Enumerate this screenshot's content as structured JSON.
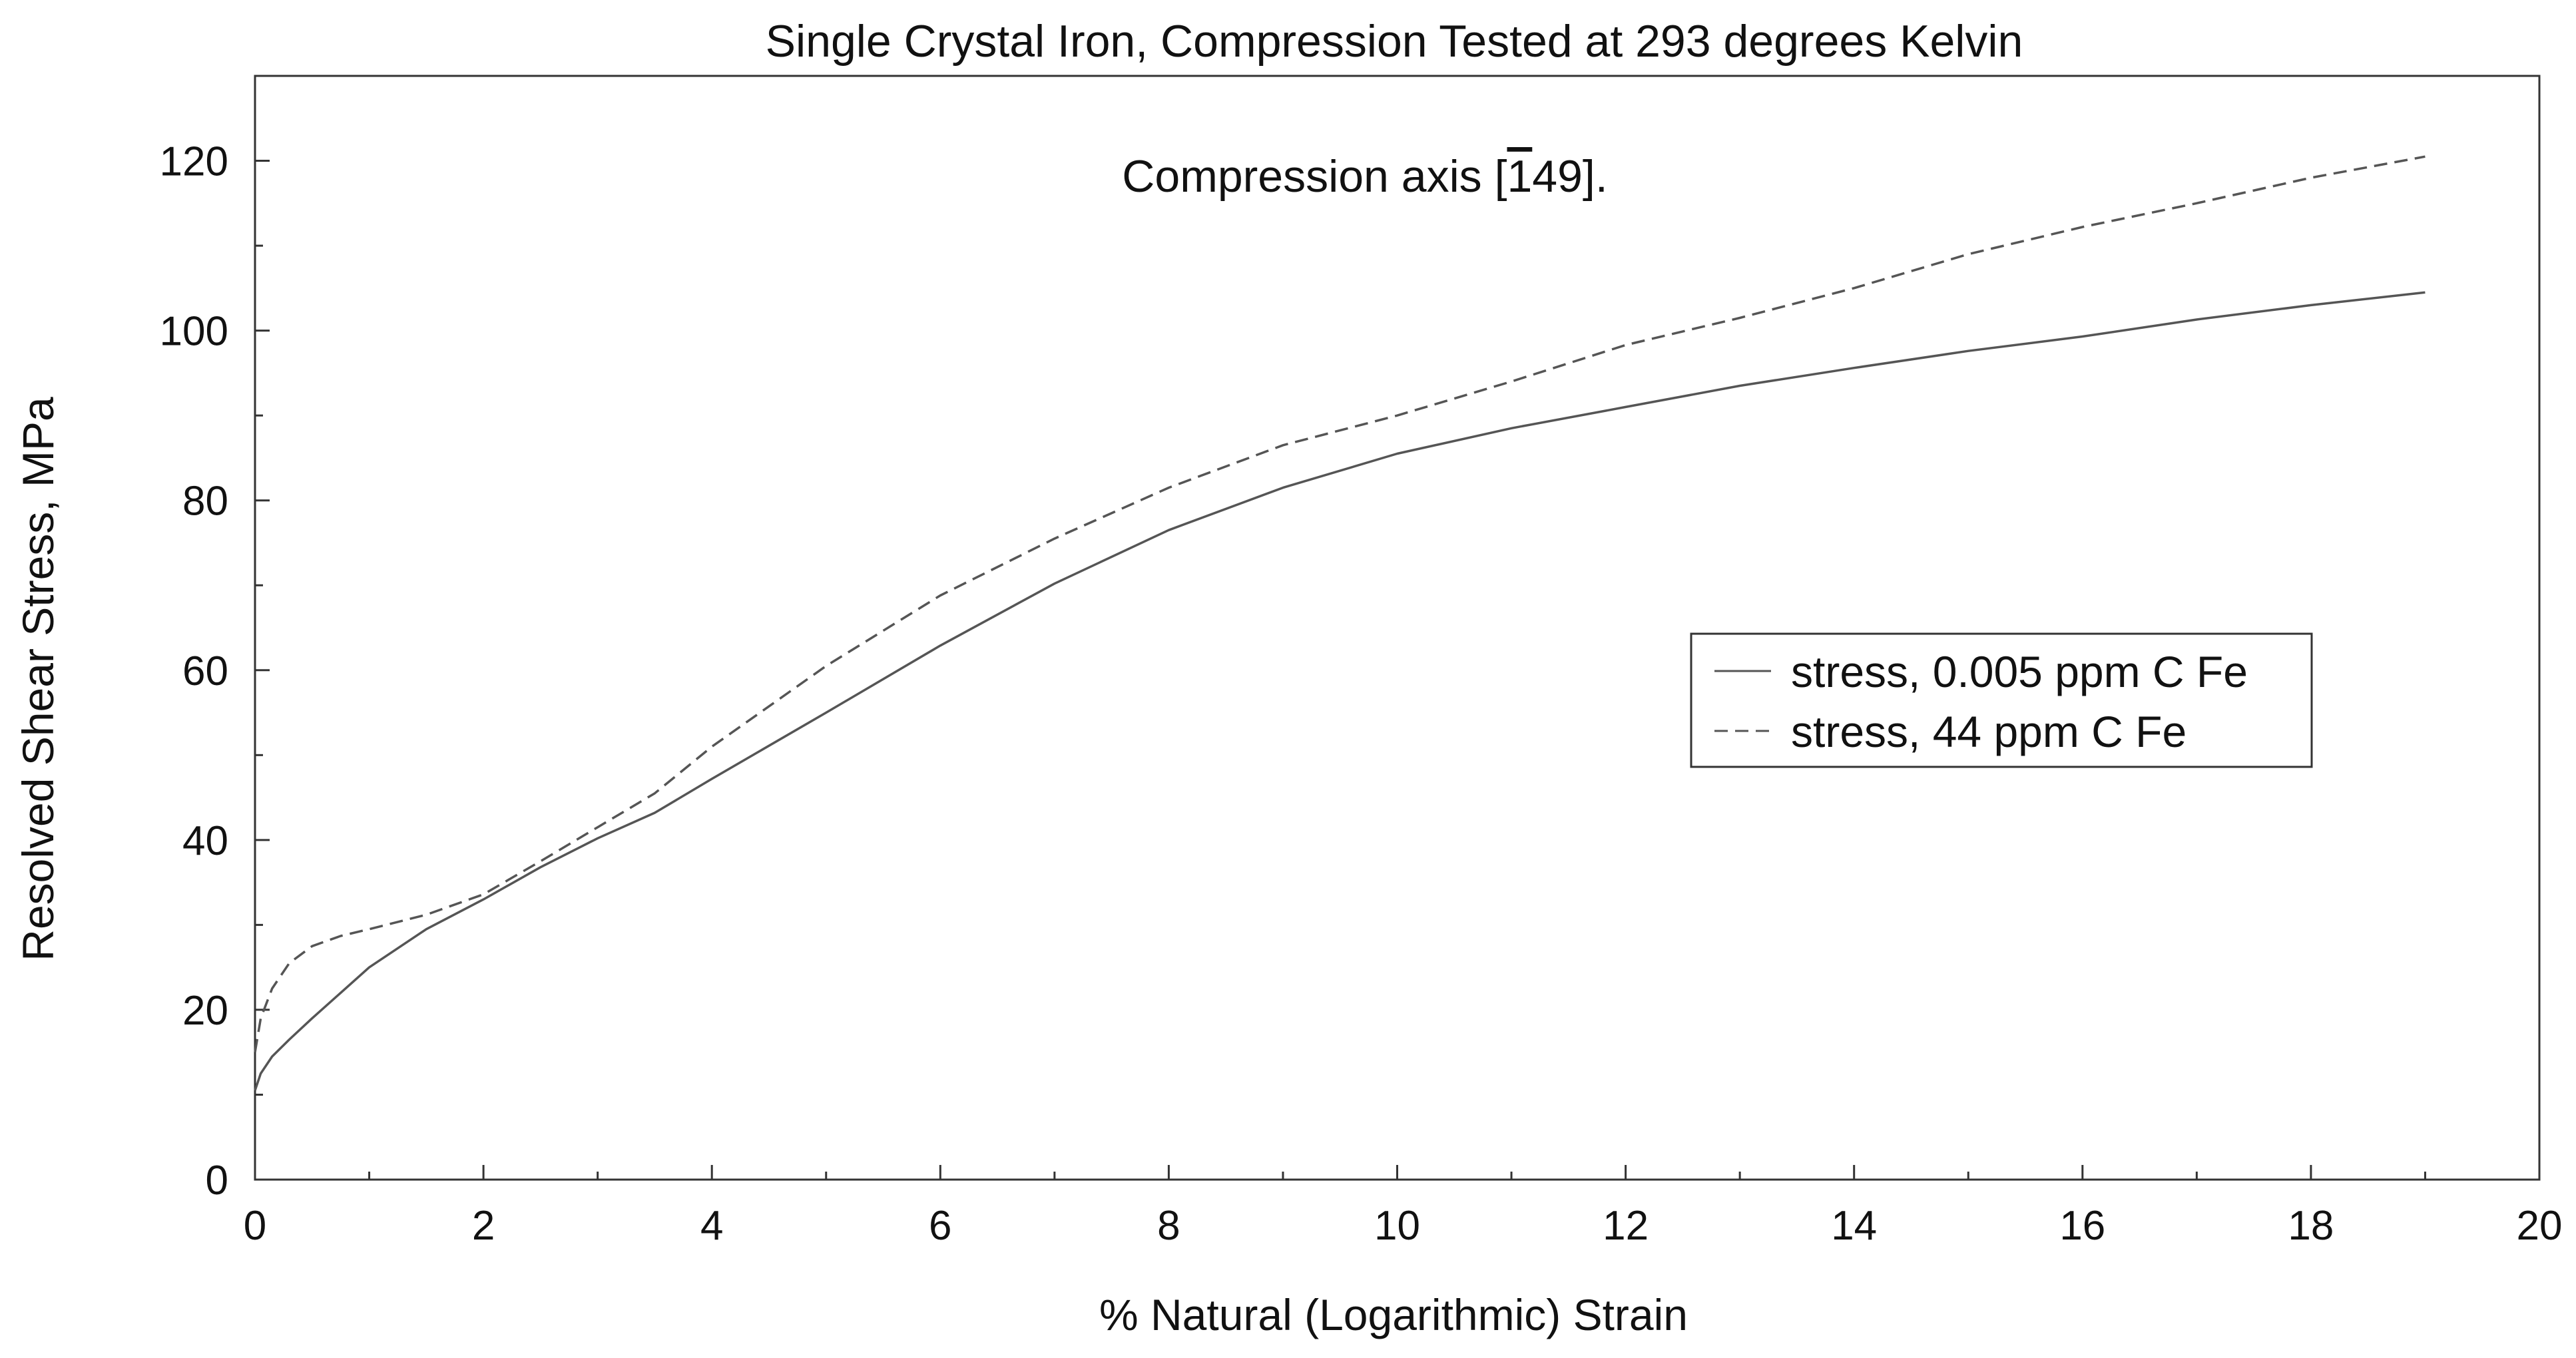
{
  "chart_data": {
    "type": "line",
    "title": "Single Crystal Iron, Compression Tested at 293 degrees Kelvin",
    "annotation": {
      "prefix": "Compression axis [",
      "overbar_digit": "1",
      "suffix": "49]."
    },
    "xlabel": "% Natural (Logarithmic) Strain",
    "ylabel": "Resolved Shear Stress, MPa",
    "xlim": [
      0,
      20
    ],
    "ylim": [
      0,
      130
    ],
    "xticks": [
      0,
      2,
      4,
      6,
      8,
      10,
      12,
      14,
      16,
      18,
      20
    ],
    "yticks": [
      0,
      20,
      40,
      60,
      80,
      100,
      120
    ],
    "grid": false,
    "legend_position": "center-right",
    "series": [
      {
        "name": "stress, 0.005 ppm C Fe",
        "style": "solid",
        "color": "#555555",
        "x": [
          0,
          0.05,
          0.15,
          0.3,
          0.5,
          0.75,
          1.0,
          1.5,
          2.0,
          2.5,
          3.0,
          3.5,
          4.0,
          5.0,
          6.0,
          7.0,
          8.0,
          9.0,
          10.0,
          11.0,
          12.0,
          13.0,
          14.0,
          15.0,
          16.0,
          17.0,
          18.0,
          19.0
        ],
        "y": [
          10.5,
          12.5,
          14.5,
          16.5,
          19.0,
          22.0,
          25.0,
          29.5,
          33.0,
          36.8,
          40.2,
          43.2,
          47.2,
          55.0,
          62.9,
          70.2,
          76.5,
          81.5,
          85.5,
          88.5,
          91.0,
          93.5,
          95.6,
          97.6,
          99.3,
          101.3,
          103.0,
          104.5
        ]
      },
      {
        "name": "stress, 44 ppm C Fe",
        "style": "dashed",
        "color": "#555555",
        "x": [
          0,
          0.05,
          0.15,
          0.3,
          0.5,
          0.75,
          1.0,
          1.5,
          2.0,
          2.5,
          3.0,
          3.5,
          4.0,
          5.0,
          6.0,
          7.0,
          8.0,
          9.0,
          10.0,
          11.0,
          12.0,
          13.0,
          14.0,
          15.0,
          16.0,
          17.0,
          18.0,
          19.0
        ],
        "y": [
          15.0,
          19.0,
          22.5,
          25.5,
          27.5,
          28.7,
          29.5,
          31.2,
          33.6,
          37.5,
          41.5,
          45.5,
          51.0,
          60.5,
          68.8,
          75.5,
          81.5,
          86.5,
          90.0,
          94.0,
          98.3,
          101.5,
          105.0,
          109.0,
          112.2,
          115.0,
          118.0,
          120.5
        ]
      }
    ]
  }
}
